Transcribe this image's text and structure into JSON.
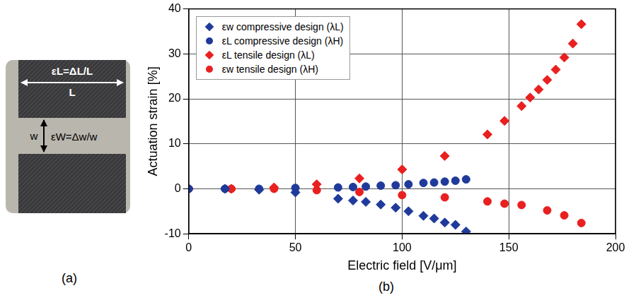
{
  "panel_a": {
    "label": "(a)",
    "texts": {
      "strain_length": "εL=ΔL/L",
      "length": "L",
      "width": "w",
      "strain_width": "εW=Δw/w"
    }
  },
  "chart_data": {
    "type": "scatter",
    "panel_label": "(b)",
    "x_label": "Electric field [V/μm]",
    "y_label": "Actuation strain [%]",
    "xlim": [
      0,
      200
    ],
    "xticks": [
      0,
      50,
      100,
      150,
      200
    ],
    "ylim": [
      -10,
      40
    ],
    "yticks": [
      -10,
      0,
      10,
      20,
      30,
      40
    ],
    "grid": true,
    "legend": "upper left",
    "series": [
      {
        "name": "εw compressive design (λL)",
        "color": "#1f3a9a",
        "marker": "diamond",
        "x": [
          0,
          17,
          33,
          50,
          70,
          77,
          83,
          90,
          97,
          103,
          110,
          115,
          120,
          125,
          130
        ],
        "values": [
          0,
          0,
          -0.2,
          -0.8,
          -2.2,
          -2.6,
          -2.9,
          -3.5,
          -4.2,
          -5.0,
          -6.0,
          -6.6,
          -7.5,
          -8.0,
          -9.5
        ]
      },
      {
        "name": "εL compressive design (λH)",
        "color": "#1f3a9a",
        "marker": "circle",
        "x": [
          0,
          17,
          33,
          50,
          70,
          77,
          83,
          90,
          97,
          103,
          110,
          115,
          120,
          125,
          130
        ],
        "values": [
          0,
          0,
          0,
          0.2,
          0.3,
          0.4,
          0.5,
          0.7,
          0.8,
          1.0,
          1.3,
          1.4,
          1.6,
          1.8,
          2.1
        ]
      },
      {
        "name": "εL tensile design (λL)",
        "color": "#e8201f",
        "marker": "diamond",
        "x": [
          0,
          20,
          40,
          60,
          80,
          100,
          120,
          140,
          148,
          156,
          160,
          164,
          168,
          172,
          176,
          180,
          184
        ],
        "values": [
          0,
          0,
          0.3,
          1.0,
          2.3,
          4.3,
          7.3,
          12.1,
          15.1,
          18.4,
          20.3,
          22.1,
          24.2,
          26.5,
          29.2,
          32.3,
          36.6
        ]
      },
      {
        "name": "εw tensile design (λH)",
        "color": "#e8201f",
        "marker": "circle",
        "x": [
          0,
          20,
          40,
          60,
          80,
          100,
          120,
          140,
          148,
          156,
          168,
          176,
          184
        ],
        "values": [
          0,
          0,
          0,
          -0.3,
          -0.7,
          -1.4,
          -1.9,
          -2.8,
          -3.3,
          -3.6,
          -4.8,
          -5.9,
          -7.6
        ]
      }
    ]
  }
}
